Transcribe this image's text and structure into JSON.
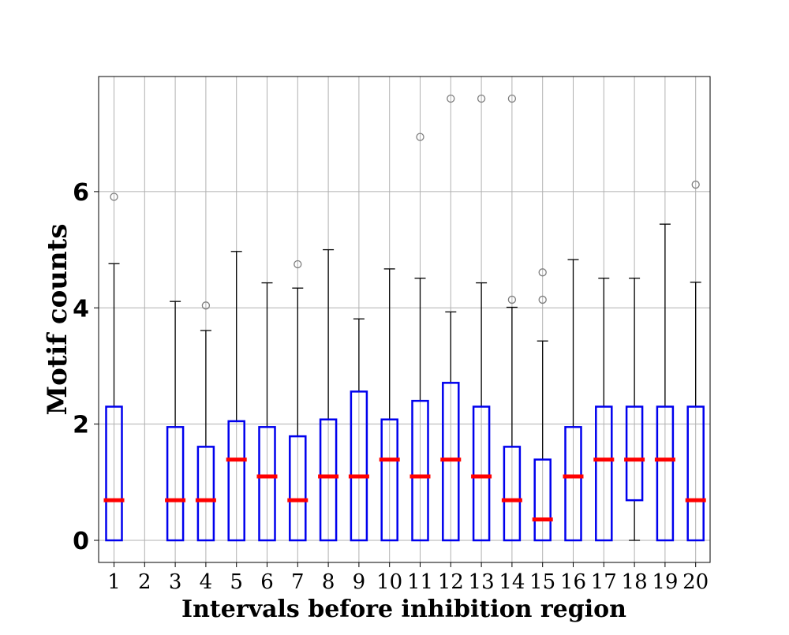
{
  "chart_data": {
    "type": "box",
    "title": "",
    "xlabel": "Intervals before inhibition region",
    "ylabel": "Motif counts",
    "ylim": [
      -0.38,
      7.98
    ],
    "yticks": [
      0,
      2,
      4,
      6
    ],
    "grid": true,
    "colors": {
      "box": "#0000ee",
      "median": "#ff0000",
      "whisker": "#000000",
      "flier": "#7f7f7f",
      "grid": "#b0b0b0"
    },
    "categories": [
      "1",
      "2",
      "3",
      "4",
      "5",
      "6",
      "7",
      "8",
      "9",
      "10",
      "11",
      "12",
      "13",
      "14",
      "15",
      "16",
      "17",
      "18",
      "19",
      "20"
    ],
    "boxes": [
      {
        "x": "1",
        "whislo": 0,
        "q1": 0,
        "med": 0.69,
        "q3": 2.3,
        "whishi": 4.76,
        "fliers": [
          5.91
        ]
      },
      {
        "x": "2",
        "whislo": null,
        "q1": null,
        "med": null,
        "q3": null,
        "whishi": null,
        "fliers": []
      },
      {
        "x": "3",
        "whislo": 0,
        "q1": 0,
        "med": 0.69,
        "q3": 1.95,
        "whishi": 4.11,
        "fliers": []
      },
      {
        "x": "4",
        "whislo": 0,
        "q1": 0,
        "med": 0.69,
        "q3": 1.61,
        "whishi": 3.61,
        "fliers": [
          4.04
        ]
      },
      {
        "x": "5",
        "whislo": 0,
        "q1": 0,
        "med": 1.39,
        "q3": 2.05,
        "whishi": 4.97,
        "fliers": []
      },
      {
        "x": "6",
        "whislo": 0,
        "q1": 0,
        "med": 1.1,
        "q3": 1.95,
        "whishi": 4.43,
        "fliers": []
      },
      {
        "x": "7",
        "whislo": 0,
        "q1": 0,
        "med": 0.69,
        "q3": 1.79,
        "whishi": 4.34,
        "fliers": [
          4.75
        ]
      },
      {
        "x": "8",
        "whislo": 0,
        "q1": 0,
        "med": 1.1,
        "q3": 2.08,
        "whishi": 5.0,
        "fliers": []
      },
      {
        "x": "9",
        "whislo": 0,
        "q1": 0,
        "med": 1.1,
        "q3": 2.56,
        "whishi": 3.81,
        "fliers": []
      },
      {
        "x": "10",
        "whislo": 0,
        "q1": 0,
        "med": 1.39,
        "q3": 2.08,
        "whishi": 4.67,
        "fliers": []
      },
      {
        "x": "11",
        "whislo": 0,
        "q1": 0,
        "med": 1.1,
        "q3": 2.4,
        "whishi": 4.51,
        "fliers": [
          6.94
        ]
      },
      {
        "x": "12",
        "whislo": 0,
        "q1": 0,
        "med": 1.39,
        "q3": 2.71,
        "whishi": 3.93,
        "fliers": [
          7.6
        ]
      },
      {
        "x": "13",
        "whislo": 0,
        "q1": 0,
        "med": 1.1,
        "q3": 2.3,
        "whishi": 4.43,
        "fliers": [
          7.6
        ]
      },
      {
        "x": "14",
        "whislo": 0,
        "q1": 0,
        "med": 0.69,
        "q3": 1.61,
        "whishi": 4.01,
        "fliers": [
          4.14,
          7.6
        ]
      },
      {
        "x": "15",
        "whislo": 0,
        "q1": 0,
        "med": 0.36,
        "q3": 1.39,
        "whishi": 3.43,
        "fliers": [
          4.14,
          4.61
        ]
      },
      {
        "x": "16",
        "whislo": 0,
        "q1": 0,
        "med": 1.1,
        "q3": 1.95,
        "whishi": 4.83,
        "fliers": []
      },
      {
        "x": "17",
        "whislo": 0,
        "q1": 0,
        "med": 1.39,
        "q3": 2.3,
        "whishi": 4.51,
        "fliers": []
      },
      {
        "x": "18",
        "whislo": 0,
        "q1": 0.69,
        "med": 1.39,
        "q3": 2.3,
        "whishi": 4.51,
        "fliers": []
      },
      {
        "x": "19",
        "whislo": 0,
        "q1": 0,
        "med": 1.39,
        "q3": 2.3,
        "whishi": 5.44,
        "fliers": []
      },
      {
        "x": "20",
        "whislo": 0,
        "q1": 0,
        "med": 0.69,
        "q3": 2.3,
        "whishi": 4.44,
        "fliers": [
          6.12
        ]
      }
    ]
  }
}
